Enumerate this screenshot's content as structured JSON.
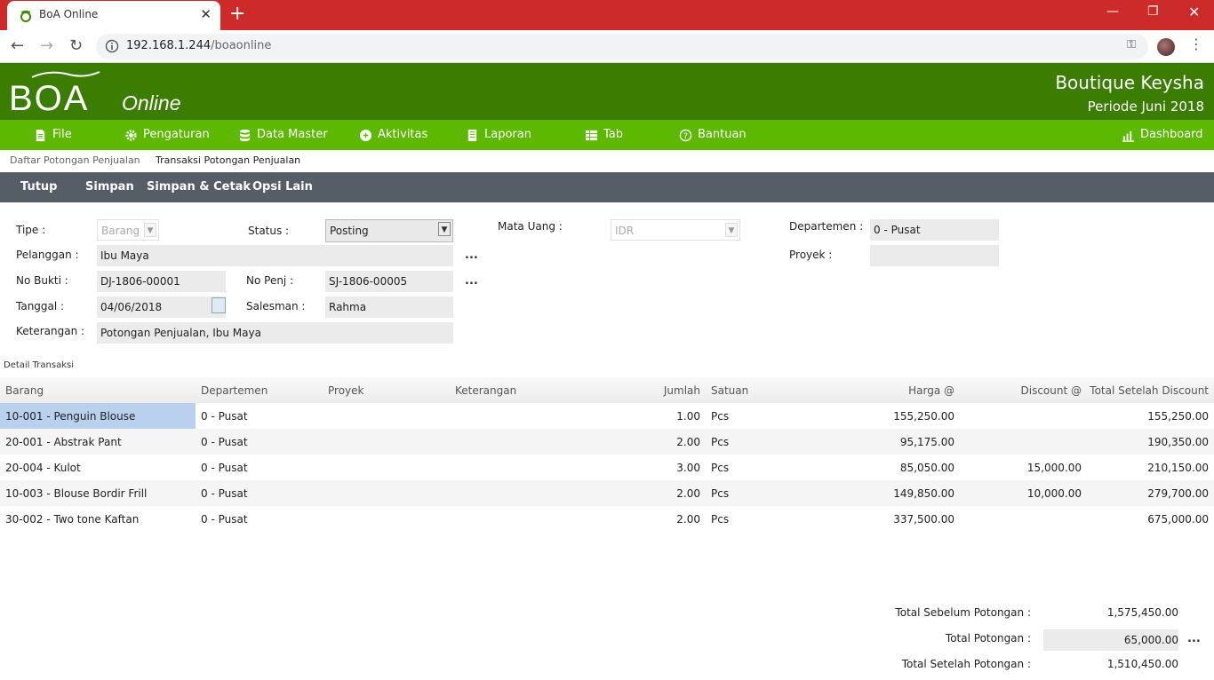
{
  "browser": {
    "tab_title": "BoA Online",
    "url_host": "192.168.1.244",
    "url_path": "/boaonline"
  },
  "header": {
    "logo": "BOA",
    "logo_sub": "Online",
    "company": "Boutique Keysha",
    "period": "Periode Juni 2018"
  },
  "menu": {
    "file": "File",
    "pengaturan": "Pengaturan",
    "data_master": "Data Master",
    "aktivitas": "Aktivitas",
    "laporan": "Laporan",
    "tab": "Tab",
    "bantuan": "Bantuan",
    "dashboard": "Dashboard"
  },
  "crumbs": [
    "Daftar Potongan Penjualan",
    "Transaksi Potongan Penjualan"
  ],
  "actions": {
    "tutup": "Tutup",
    "simpan": "Simpan",
    "simpan_cetak": "Simpan & Cetak",
    "opsi_lain": "Opsi Lain"
  },
  "form": {
    "tipe_label": "Tipe :",
    "tipe_value": "Barang",
    "status_label": "Status :",
    "status_value": "Posting",
    "mata_uang_label": "Mata Uang :",
    "mata_uang_value": "IDR",
    "departemen_label": "Departemen :",
    "departemen_value": "0 - Pusat",
    "pelanggan_label": "Pelanggan :",
    "pelanggan_value": "Ibu Maya",
    "proyek_label": "Proyek :",
    "proyek_value": "",
    "no_bukti_label": "No Bukti :",
    "no_bukti_value": "DJ-1806-00001",
    "no_penj_label": "No Penj :",
    "no_penj_value": "SJ-1806-00005",
    "tanggal_label": "Tanggal :",
    "tanggal_value": "04/06/2018",
    "salesman_label": "Salesman :",
    "salesman_value": "Rahma",
    "keterangan_label": "Keterangan :",
    "keterangan_value": "Potongan Penjualan, Ibu Maya",
    "ellipsis": "..."
  },
  "detail": {
    "title": "Detail Transaksi",
    "columns": {
      "barang": "Barang",
      "departemen": "Departemen",
      "proyek": "Proyek",
      "keterangan": "Keterangan",
      "jumlah": "Jumlah",
      "satuan": "Satuan",
      "harga": "Harga @",
      "discount": "Discount @",
      "total": "Total Setelah Discount"
    },
    "rows": [
      {
        "barang": "10-001 - Penguin Blouse",
        "departemen": "0 - Pusat",
        "proyek": "",
        "keterangan": "",
        "jumlah": "1.00",
        "satuan": "Pcs",
        "harga": "155,250.00",
        "discount": "",
        "total": "155,250.00"
      },
      {
        "barang": "20-001 - Abstrak Pant",
        "departemen": "0 - Pusat",
        "proyek": "",
        "keterangan": "",
        "jumlah": "2.00",
        "satuan": "Pcs",
        "harga": "95,175.00",
        "discount": "",
        "total": "190,350.00"
      },
      {
        "barang": "20-004 - Kulot",
        "departemen": "0 - Pusat",
        "proyek": "",
        "keterangan": "",
        "jumlah": "3.00",
        "satuan": "Pcs",
        "harga": "85,050.00",
        "discount": "15,000.00",
        "total": "210,150.00"
      },
      {
        "barang": "10-003 - Blouse Bordir Frill",
        "departemen": "0 - Pusat",
        "proyek": "",
        "keterangan": "",
        "jumlah": "2.00",
        "satuan": "Pcs",
        "harga": "149,850.00",
        "discount": "10,000.00",
        "total": "279,700.00"
      },
      {
        "barang": "30-002 - Two tone Kaftan",
        "departemen": "0 - Pusat",
        "proyek": "",
        "keterangan": "",
        "jumlah": "2.00",
        "satuan": "Pcs",
        "harga": "337,500.00",
        "discount": "",
        "total": "675,000.00"
      }
    ]
  },
  "totals": {
    "sebelum_label": "Total Sebelum Potongan :",
    "sebelum_value": "1,575,450.00",
    "potongan_label": "Total Potongan :",
    "potongan_value": "65,000.00",
    "setelah_label": "Total Setelah Potongan :",
    "setelah_value": "1,510,450.00"
  }
}
